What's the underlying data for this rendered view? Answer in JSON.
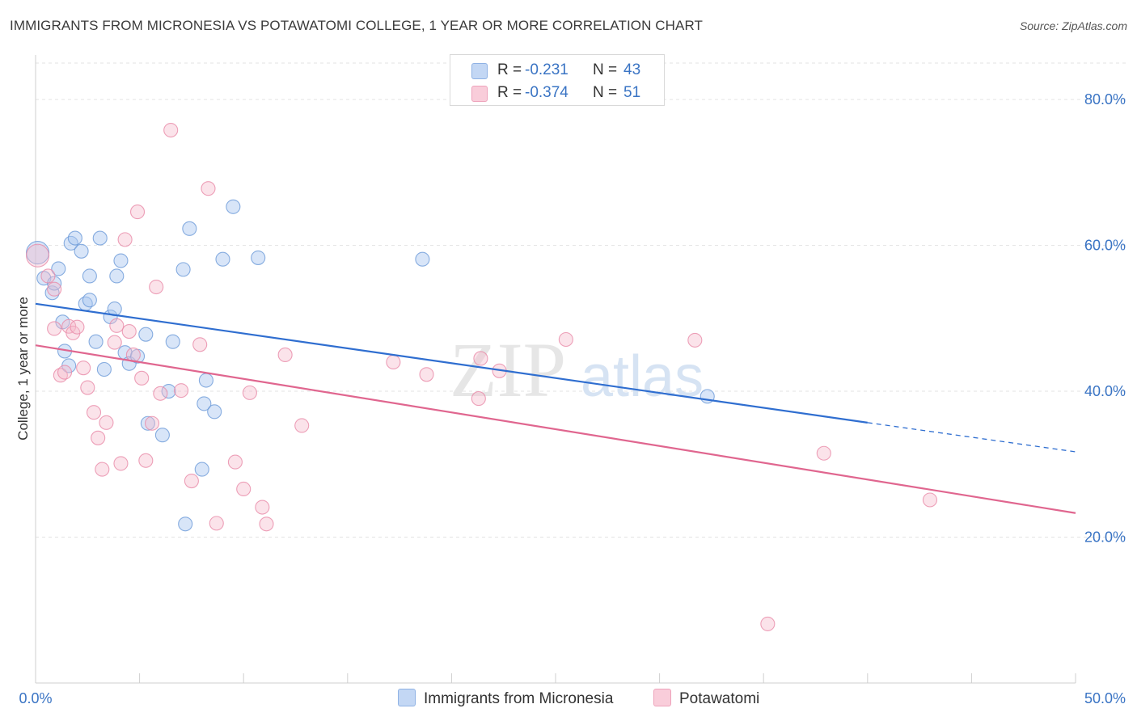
{
  "title": "IMMIGRANTS FROM MICRONESIA VS POTAWATOMI COLLEGE, 1 YEAR OR MORE CORRELATION CHART",
  "source": "Source: ZipAtlas.com",
  "watermark": {
    "zip": "ZIP",
    "atlas": "atlas"
  },
  "legend": {
    "r_label": "R =",
    "n_label": "N =",
    "series": [
      {
        "name": "Immigrants from Micronesia",
        "r": "-0.231",
        "n": "43",
        "color": "#a9c6ef",
        "stroke": "#6c9ad8"
      },
      {
        "name": "Potawatomi",
        "r": "-0.374",
        "n": "51",
        "color": "#f5b8cb",
        "stroke": "#e88aa8"
      }
    ]
  },
  "chart_data": {
    "type": "scatter",
    "xlabel": "",
    "ylabel": "College, 1 year or more",
    "xlim": [
      0,
      50
    ],
    "ylim": [
      0,
      85
    ],
    "x_tick_labels": [
      "0.0%",
      "50.0%"
    ],
    "y_ticks": [
      20,
      40,
      60,
      80
    ],
    "y_tick_labels": [
      "20.0%",
      "40.0%",
      "60.0%",
      "80.0%"
    ],
    "grid": true,
    "series": [
      {
        "name": "Immigrants from Micronesia",
        "color": "#6c9ad8",
        "line_color": "#2f6ed0",
        "trend": {
          "x0": 0,
          "y0": 52.0,
          "x1": 40,
          "y1": 35.7,
          "x_dash_end": 50,
          "y_dash_end": 31.7
        },
        "points": [
          [
            0.1,
            59.0
          ],
          [
            0.4,
            55.5
          ],
          [
            0.8,
            53.5
          ],
          [
            0.9,
            54.8
          ],
          [
            1.1,
            56.8
          ],
          [
            1.3,
            49.5
          ],
          [
            1.4,
            45.5
          ],
          [
            1.6,
            43.5
          ],
          [
            1.7,
            60.3
          ],
          [
            1.9,
            61.0
          ],
          [
            2.2,
            59.2
          ],
          [
            2.4,
            52.0
          ],
          [
            2.6,
            55.8
          ],
          [
            2.6,
            52.5
          ],
          [
            2.9,
            46.8
          ],
          [
            3.1,
            61.0
          ],
          [
            3.3,
            43.0
          ],
          [
            3.6,
            50.2
          ],
          [
            3.8,
            51.3
          ],
          [
            3.9,
            55.8
          ],
          [
            4.1,
            57.9
          ],
          [
            4.3,
            45.3
          ],
          [
            4.5,
            43.8
          ],
          [
            4.9,
            44.8
          ],
          [
            5.3,
            47.8
          ],
          [
            5.4,
            35.6
          ],
          [
            6.1,
            34.0
          ],
          [
            6.4,
            40.0
          ],
          [
            6.6,
            46.8
          ],
          [
            7.1,
            56.7
          ],
          [
            7.4,
            62.3
          ],
          [
            7.2,
            21.8
          ],
          [
            8.0,
            29.3
          ],
          [
            8.1,
            38.3
          ],
          [
            8.2,
            41.5
          ],
          [
            8.6,
            37.2
          ],
          [
            9.0,
            58.1
          ],
          [
            9.5,
            65.3
          ],
          [
            10.7,
            58.3
          ],
          [
            18.6,
            58.1
          ],
          [
            32.3,
            39.3
          ]
        ]
      },
      {
        "name": "Potawatomi",
        "color": "#e88aa8",
        "line_color": "#e0668f",
        "trend": {
          "x0": 0,
          "y0": 46.3,
          "x1": 50,
          "y1": 23.3
        },
        "points": [
          [
            0.1,
            58.6
          ],
          [
            0.6,
            55.8
          ],
          [
            0.9,
            54.0
          ],
          [
            0.9,
            48.6
          ],
          [
            1.2,
            42.2
          ],
          [
            1.4,
            42.6
          ],
          [
            1.6,
            48.9
          ],
          [
            1.8,
            48.0
          ],
          [
            2.0,
            48.8
          ],
          [
            2.3,
            43.2
          ],
          [
            2.5,
            40.5
          ],
          [
            2.8,
            37.1
          ],
          [
            3.0,
            33.6
          ],
          [
            3.2,
            29.3
          ],
          [
            3.4,
            35.7
          ],
          [
            3.8,
            46.7
          ],
          [
            3.9,
            49.0
          ],
          [
            4.1,
            30.1
          ],
          [
            4.3,
            60.8
          ],
          [
            4.5,
            48.2
          ],
          [
            4.7,
            45.0
          ],
          [
            4.9,
            64.6
          ],
          [
            5.1,
            41.8
          ],
          [
            5.3,
            30.5
          ],
          [
            5.6,
            35.6
          ],
          [
            5.8,
            54.3
          ],
          [
            6.0,
            39.7
          ],
          [
            6.5,
            75.8
          ],
          [
            7.0,
            40.1
          ],
          [
            7.5,
            27.7
          ],
          [
            7.9,
            46.4
          ],
          [
            8.3,
            67.8
          ],
          [
            8.7,
            21.9
          ],
          [
            9.6,
            30.3
          ],
          [
            10.0,
            26.6
          ],
          [
            10.3,
            39.8
          ],
          [
            10.9,
            24.1
          ],
          [
            11.1,
            21.8
          ],
          [
            12.0,
            45.0
          ],
          [
            12.8,
            35.3
          ],
          [
            17.2,
            44.0
          ],
          [
            18.8,
            42.3
          ],
          [
            21.3,
            39.0
          ],
          [
            21.4,
            44.5
          ],
          [
            22.3,
            42.8
          ],
          [
            25.5,
            47.1
          ],
          [
            31.7,
            47.0
          ],
          [
            35.2,
            8.1
          ],
          [
            37.9,
            31.5
          ],
          [
            43.0,
            25.1
          ]
        ]
      }
    ]
  }
}
